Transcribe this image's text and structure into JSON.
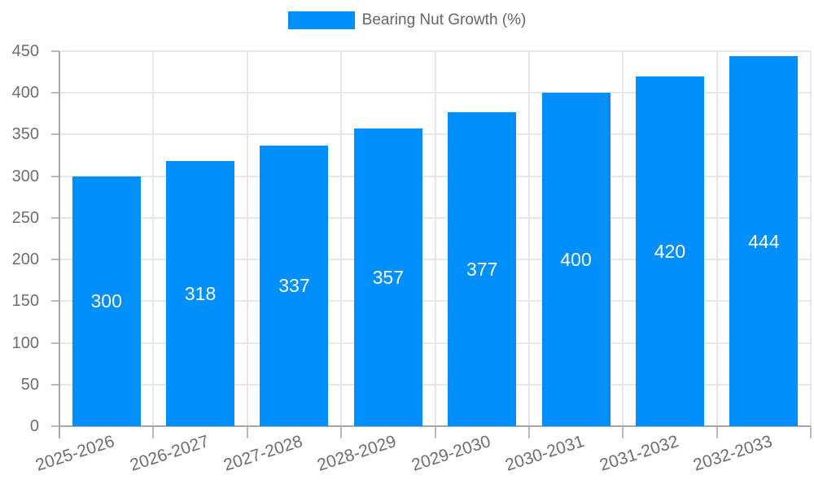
{
  "legend": {
    "label": "Bearing Nut Growth (%)"
  },
  "chart_data": {
    "type": "bar",
    "title": "Bearing Nut Growth (%)",
    "categories": [
      "2025-2026",
      "2026-2027",
      "2027-2028",
      "2028-2029",
      "2029-2030",
      "2030-2031",
      "2031-2032",
      "2032-2033"
    ],
    "series": [
      {
        "name": "Bearing Nut Growth (%)",
        "values": [
          300,
          318,
          337,
          357,
          377,
          400,
          420,
          444
        ]
      }
    ],
    "data_labels": [
      300,
      318,
      337,
      357,
      377,
      400,
      420,
      444
    ],
    "xlabel": "",
    "ylabel": "",
    "ylim": [
      0,
      450
    ],
    "yticks": [
      0,
      50,
      100,
      150,
      200,
      250,
      300,
      350,
      400,
      450
    ],
    "grid": true,
    "legend_position": "top-center",
    "colors": {
      "bar": "#008FFB",
      "data_label": "#FFFFFF",
      "axis_text": "#6E6E6E",
      "legend_text": "#666666",
      "grid_line": "#E7E7E7",
      "axis_line": "#A6A6A6",
      "tick": "#B9B9B9",
      "background": "#FFFFFF"
    }
  }
}
